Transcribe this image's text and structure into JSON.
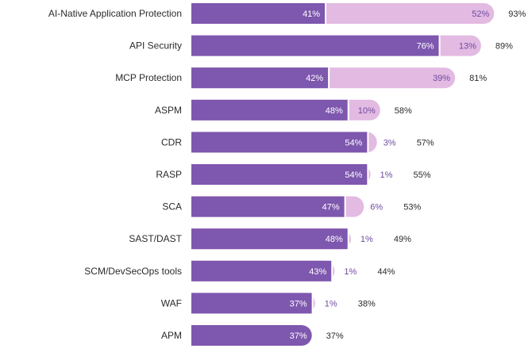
{
  "chart_data": {
    "type": "bar",
    "orientation": "horizontal",
    "stacked": true,
    "title": "",
    "xlabel": "",
    "ylabel": "",
    "xlim": [
      0,
      100
    ],
    "grid": false,
    "legend": "none",
    "colors": {
      "primary": "#7E57AE",
      "secondary": "#E2BAE2",
      "secondary_text": "#6F4BA0",
      "text": "#2b2b2b"
    },
    "categories": [
      "AI-Native Application Protection",
      "API Security",
      "MCP Protection",
      "ASPM",
      "CDR",
      "RASP",
      "SCA",
      "SAST/DAST",
      "SCM/DevSecOps tools",
      "WAF",
      "APM"
    ],
    "series": [
      {
        "values": [
          41,
          76,
          42,
          48,
          54,
          54,
          47,
          48,
          43,
          37,
          37
        ]
      },
      {
        "values": [
          52,
          13,
          39,
          10,
          3,
          1,
          6,
          1,
          1,
          1,
          0
        ]
      }
    ],
    "segment_labels": [
      [
        "41%",
        "76%",
        "42%",
        "48%",
        "54%",
        "54%",
        "47%",
        "48%",
        "43%",
        "37%",
        "37%"
      ],
      [
        "52%",
        "13%",
        "39%",
        "10%",
        "3%",
        "1%",
        "6%",
        "1%",
        "1%",
        "1%",
        ""
      ]
    ],
    "totals": [
      93,
      89,
      81,
      58,
      57,
      55,
      53,
      49,
      44,
      38,
      37
    ],
    "total_labels": [
      "93%",
      "89%",
      "81%",
      "58%",
      "57%",
      "55%",
      "53%",
      "49%",
      "44%",
      "38%",
      "37%"
    ]
  }
}
